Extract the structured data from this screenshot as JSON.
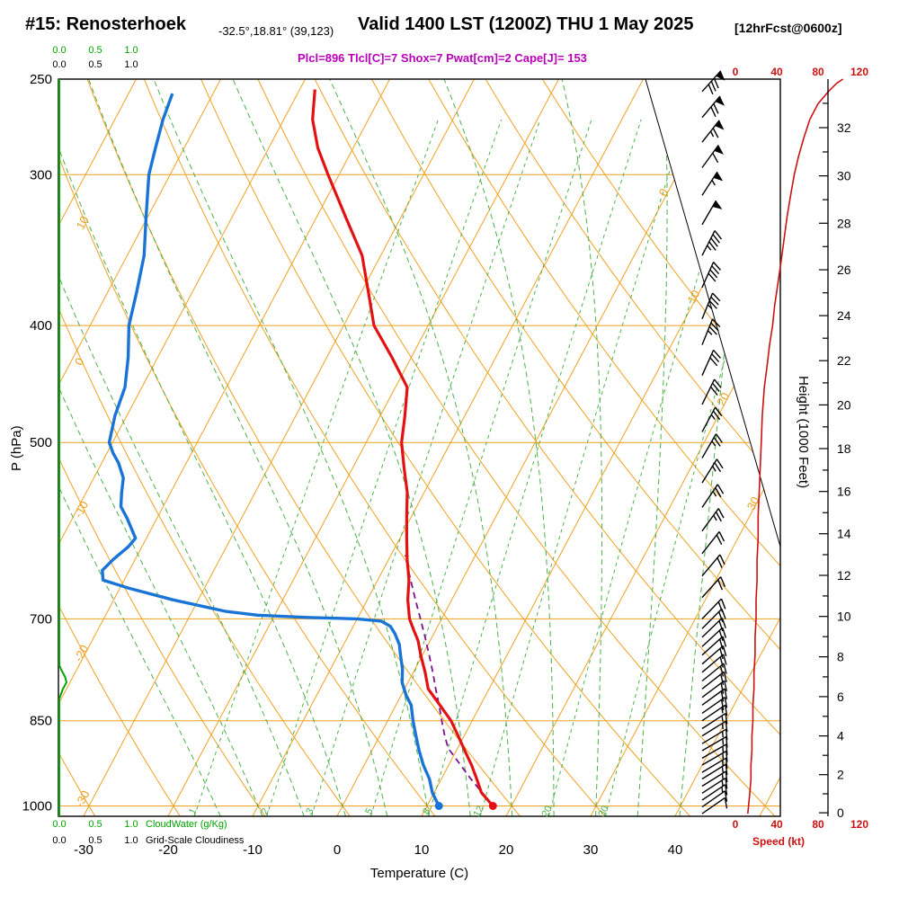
{
  "header": {
    "station": "#15: Renosterhoek",
    "coords": "-32.5°,18.81° (39,123)",
    "valid": "Valid 1400 LST (1200Z) THU 1 May 2025",
    "fcst": "[12hrFcst@0600z]",
    "indices": "Plcl=896 Tlcl[C]=7 Shox=7 Pwat[cm]=2 Cape[J]= 153"
  },
  "axes": {
    "pressure": {
      "label": "P (hPa)",
      "ticks": [
        250,
        300,
        400,
        500,
        700,
        850,
        1000
      ]
    },
    "temperature": {
      "label": "Temperature (C)",
      "ticks": [
        -30,
        -20,
        -10,
        0,
        10,
        20,
        30,
        40
      ]
    },
    "height": {
      "label": "Height (1000 Feet)",
      "ticks": [
        0,
        2,
        4,
        6,
        8,
        10,
        12,
        14,
        16,
        18,
        20,
        22,
        24,
        26,
        28,
        30,
        32
      ]
    },
    "speed": {
      "label": "Speed (kt)",
      "ticks": [
        0,
        40,
        80,
        120
      ]
    },
    "cloudwater": {
      "label": "CloudWater (g/Kg)",
      "ticks": [
        "0.0",
        "0.5",
        "1.0"
      ]
    },
    "cloudiness": {
      "label": "Grid-Scale Cloudiness",
      "ticks": [
        "0.0",
        "0.5",
        "1.0"
      ]
    }
  },
  "colors": {
    "isotherm": "#efa11e",
    "dry_adiabat": "#efa11e",
    "mixing_ratio": "#4daf4a",
    "moist_adiabat": "#4daf4a",
    "temperature_curve": "#e31111",
    "dewpoint_curve": "#1a74d6",
    "parcel": "#7d1090",
    "indices_text": "#bb00bb",
    "speed_curve": "#cc1111",
    "cloudwater": "#00a400",
    "barbs": "#000000"
  },
  "chart_data": {
    "type": "line",
    "subtype": "skew-t log-p forecast sounding",
    "title": "#15: Renosterhoek Valid 1400 LST (1200Z) THU 1 May 2025",
    "pressure_range_hpa": [
      250,
      1020
    ],
    "isotherm_range_c": [
      -110,
      50
    ],
    "isotherm_step_c": 10,
    "isotherm_labels_c": [
      0,
      10,
      20,
      30
    ],
    "dry_adiabat_range_c": [
      -30,
      100
    ],
    "dry_adiabat_step_c": 10,
    "dry_adiabat_labels_c": [
      10,
      0,
      -10,
      -20,
      -30
    ],
    "moist_adiabat_range_c": [
      -15,
      40
    ],
    "moist_adiabat_step_c": 5,
    "mixing_ratio_lines_gkg": [
      1,
      2,
      3,
      5,
      8,
      12,
      20,
      30
    ],
    "indices": {
      "plcl_hpa": 896,
      "tlcl_c": 7,
      "showalter": 7,
      "pwat_cm": 2,
      "cape_j": 153
    },
    "surface_temperature_c": 17.8,
    "surface_dewpoint_c": 11.4,
    "temperature_profile_p_c": [
      [
        1000,
        17.8
      ],
      [
        975,
        15.6
      ],
      [
        950,
        14.2
      ],
      [
        925,
        12.7
      ],
      [
        900,
        11.0
      ],
      [
        875,
        9.3
      ],
      [
        850,
        7.5
      ],
      [
        825,
        5.2
      ],
      [
        800,
        2.8
      ],
      [
        775,
        1.4
      ],
      [
        750,
        -0.2
      ],
      [
        730,
        -1.4
      ],
      [
        715,
        -2.6
      ],
      [
        700,
        -3.8
      ],
      [
        675,
        -5.2
      ],
      [
        650,
        -6.3
      ],
      [
        625,
        -7.8
      ],
      [
        600,
        -9.2
      ],
      [
        575,
        -10.6
      ],
      [
        550,
        -12.0
      ],
      [
        525,
        -13.9
      ],
      [
        500,
        -15.8
      ],
      [
        475,
        -17.1
      ],
      [
        450,
        -18.6
      ],
      [
        425,
        -22.3
      ],
      [
        400,
        -26.4
      ],
      [
        375,
        -29.2
      ],
      [
        350,
        -32.2
      ],
      [
        325,
        -36.6
      ],
      [
        300,
        -41.3
      ],
      [
        285,
        -44.2
      ],
      [
        270,
        -46.6
      ],
      [
        255,
        -48.2
      ]
    ],
    "dewpoint_profile_p_c": [
      [
        1000,
        11.4
      ],
      [
        975,
        9.8
      ],
      [
        950,
        8.6
      ],
      [
        925,
        7.0
      ],
      [
        900,
        5.6
      ],
      [
        875,
        4.3
      ],
      [
        850,
        3.0
      ],
      [
        825,
        1.8
      ],
      [
        810,
        0.6
      ],
      [
        790,
        -0.7
      ],
      [
        770,
        -1.5
      ],
      [
        750,
        -2.6
      ],
      [
        735,
        -3.4
      ],
      [
        720,
        -4.6
      ],
      [
        710,
        -5.6
      ],
      [
        703,
        -7.0
      ],
      [
        700,
        -10.0
      ],
      [
        698,
        -16.0
      ],
      [
        695,
        -22.0
      ],
      [
        690,
        -26.0
      ],
      [
        675,
        -33.0
      ],
      [
        660,
        -39.0
      ],
      [
        650,
        -42.5
      ],
      [
        638,
        -43.2
      ],
      [
        625,
        -42.6
      ],
      [
        610,
        -41.6
      ],
      [
        600,
        -41.3
      ],
      [
        590,
        -42.3
      ],
      [
        578,
        -43.5
      ],
      [
        565,
        -45.0
      ],
      [
        550,
        -45.8
      ],
      [
        535,
        -46.5
      ],
      [
        520,
        -48.0
      ],
      [
        510,
        -49.3
      ],
      [
        500,
        -50.4
      ],
      [
        475,
        -51.4
      ],
      [
        450,
        -52.0
      ],
      [
        425,
        -53.5
      ],
      [
        400,
        -55.4
      ],
      [
        375,
        -56.6
      ],
      [
        350,
        -58.0
      ],
      [
        325,
        -60.2
      ],
      [
        300,
        -62.5
      ],
      [
        285,
        -63.4
      ],
      [
        270,
        -64.3
      ],
      [
        257,
        -64.8
      ]
    ],
    "parcel_path_p_c": [
      [
        1000,
        17.8
      ],
      [
        950,
        13.5
      ],
      [
        896,
        8.9
      ],
      [
        875,
        7.7
      ],
      [
        850,
        6.4
      ],
      [
        825,
        5.1
      ],
      [
        800,
        3.7
      ],
      [
        775,
        2.3
      ],
      [
        750,
        0.8
      ],
      [
        725,
        -0.8
      ],
      [
        700,
        -2.5
      ],
      [
        675,
        -4.3
      ],
      [
        650,
        -6.1
      ],
      [
        635,
        -7.2
      ],
      [
        620,
        -8.3
      ]
    ],
    "wind_barbs_p_dir_kt": [
      [
        1015,
        55,
        12
      ],
      [
        1002,
        55,
        12
      ],
      [
        989,
        56,
        13
      ],
      [
        976,
        57,
        13
      ],
      [
        963,
        58,
        14
      ],
      [
        950,
        58,
        14
      ],
      [
        938,
        59,
        15
      ],
      [
        925,
        60,
        15
      ],
      [
        913,
        60,
        15
      ],
      [
        900,
        60,
        16
      ],
      [
        888,
        59,
        16
      ],
      [
        875,
        58,
        17
      ],
      [
        863,
        57,
        17
      ],
      [
        850,
        56,
        17
      ],
      [
        838,
        55,
        18
      ],
      [
        825,
        54,
        18
      ],
      [
        813,
        53,
        18
      ],
      [
        800,
        52,
        19
      ],
      [
        788,
        51,
        19
      ],
      [
        775,
        50,
        19
      ],
      [
        763,
        49,
        20
      ],
      [
        750,
        48,
        20
      ],
      [
        738,
        47,
        20
      ],
      [
        725,
        46,
        21
      ],
      [
        713,
        45,
        21
      ],
      [
        700,
        44,
        21
      ],
      [
        672,
        42,
        21
      ],
      [
        645,
        40,
        22
      ],
      [
        618,
        38,
        22
      ],
      [
        592,
        36,
        23
      ],
      [
        566,
        34,
        23
      ],
      [
        540,
        32,
        24
      ],
      [
        515,
        30,
        25
      ],
      [
        490,
        28,
        26
      ],
      [
        465,
        26,
        28
      ],
      [
        440,
        24,
        31
      ],
      [
        415,
        22,
        34
      ],
      [
        395,
        22,
        37
      ],
      [
        372,
        24,
        41
      ],
      [
        350,
        27,
        45
      ],
      [
        330,
        30,
        50
      ],
      [
        312,
        33,
        55
      ],
      [
        296,
        36,
        60
      ],
      [
        282,
        38,
        66
      ],
      [
        269,
        40,
        72
      ],
      [
        256,
        42,
        82
      ]
    ],
    "wind_speed_profile_p_kt": [
      [
        1015,
        12
      ],
      [
        975,
        14
      ],
      [
        950,
        15
      ],
      [
        925,
        15
      ],
      [
        900,
        16
      ],
      [
        875,
        16
      ],
      [
        850,
        17
      ],
      [
        825,
        17
      ],
      [
        800,
        18
      ],
      [
        775,
        18
      ],
      [
        750,
        19
      ],
      [
        725,
        19
      ],
      [
        700,
        20
      ],
      [
        675,
        20
      ],
      [
        650,
        21
      ],
      [
        625,
        21
      ],
      [
        600,
        22
      ],
      [
        575,
        22
      ],
      [
        550,
        23
      ],
      [
        525,
        24
      ],
      [
        500,
        25
      ],
      [
        475,
        26
      ],
      [
        450,
        28
      ],
      [
        430,
        31
      ],
      [
        415,
        33
      ],
      [
        400,
        36
      ],
      [
        385,
        38
      ],
      [
        370,
        41
      ],
      [
        355,
        44
      ],
      [
        340,
        47
      ],
      [
        325,
        50
      ],
      [
        310,
        54
      ],
      [
        300,
        57
      ],
      [
        290,
        61
      ],
      [
        280,
        66
      ],
      [
        270,
        72
      ],
      [
        262,
        80
      ],
      [
        256,
        90
      ],
      [
        252,
        98
      ],
      [
        250,
        104
      ]
    ],
    "cloud_water_profile_p_gkg": [
      [
        1020,
        0
      ],
      [
        815,
        0
      ],
      [
        800,
        0.05
      ],
      [
        790,
        0.1
      ],
      [
        782,
        0.08
      ],
      [
        772,
        0.03
      ],
      [
        765,
        0
      ],
      [
        250,
        0
      ]
    ]
  }
}
